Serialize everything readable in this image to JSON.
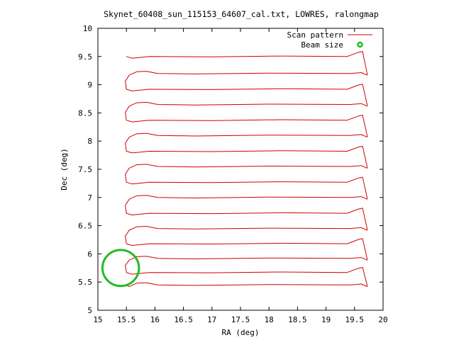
{
  "chart_data": {
    "type": "line",
    "title": "Skynet_60408_sun_115153_64607_cal.txt, LOWRES, ralongmap",
    "xlabel": "RA (deg)",
    "ylabel": "Dec (deg)",
    "xlim": [
      15,
      20
    ],
    "ylim": [
      5,
      10
    ],
    "xticks": [
      15,
      15.5,
      16,
      16.5,
      17,
      17.5,
      18,
      18.5,
      19,
      19.5,
      20
    ],
    "yticks": [
      5,
      5.5,
      6,
      6.5,
      7,
      7.5,
      8,
      8.5,
      9,
      9.5,
      10
    ],
    "xtick_labels": [
      "15",
      "15.5",
      "16",
      "16.5",
      "17",
      "17.5",
      "18",
      "18.5",
      "19",
      "19.5",
      "20"
    ],
    "ytick_labels": [
      "5",
      "5.5",
      "6",
      "6.5",
      "7",
      "7.5",
      "8",
      "8.5",
      "9",
      "9.5",
      "10"
    ],
    "grid": false,
    "legend_position": "top-right",
    "legend": [
      "Scan pattern",
      "Beam size"
    ],
    "colors": {
      "scan": "#d00000",
      "beam": "#22bb22"
    },
    "scan_pattern": {
      "ra_start": 15.5,
      "ra_end": 19.72,
      "dec_rows": [
        5.45,
        5.67,
        5.92,
        6.18,
        6.45,
        6.72,
        7.0,
        7.27,
        7.55,
        7.82,
        8.1,
        8.37,
        8.65,
        8.92,
        9.2,
        9.5
      ],
      "wiggle_amplitude": 0.03
    },
    "beam": {
      "ra": 15.4,
      "dec": 5.75,
      "radius_ra": 0.32,
      "radius_dec": 0.32
    }
  }
}
